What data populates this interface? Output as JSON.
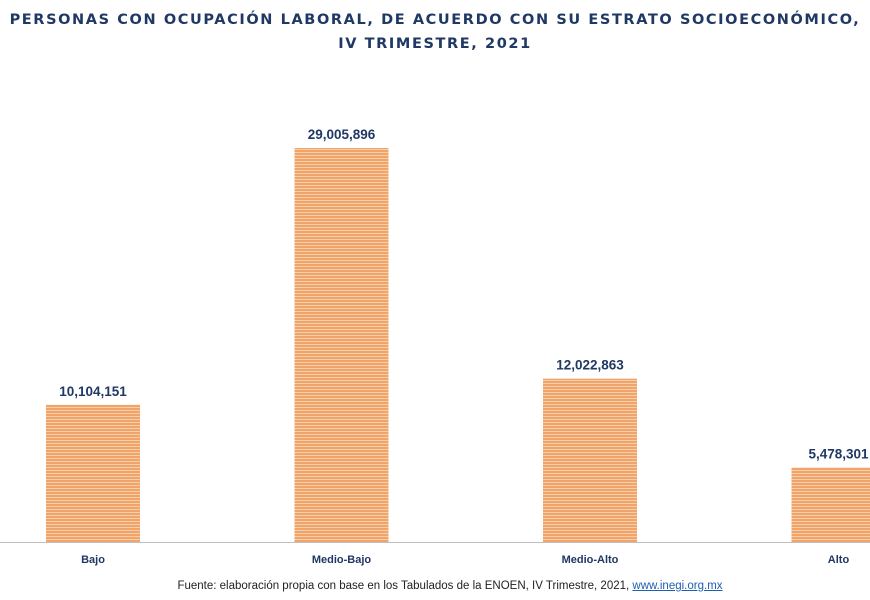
{
  "chart_data": {
    "type": "bar",
    "title": "PERSONAS CON OCUPACIÓN LABORAL, DE ACUERDO CON SU ESTRATO SOCIOECONÓMICO, IV TRIMESTRE, 2021",
    "categories": [
      "Bajo",
      "Medio-Bajo",
      "Medio-Alto",
      "Alto"
    ],
    "values": [
      10104151,
      29005896,
      12022863,
      5478301
    ],
    "data_labels": [
      "10,104,151",
      "29,005,896",
      "12,022,863",
      "5,478,301"
    ],
    "xlabel": "",
    "ylabel": "",
    "ylim": [
      0,
      29005896
    ],
    "grid": false,
    "legend": "none",
    "colors": {
      "bar": "#F0A46A",
      "bar_stripe": "#F8CFA8",
      "title": "#1F3864",
      "labels": "#1F3864"
    }
  },
  "source": {
    "text": "Fuente: elaboración propia con base en los Tabulados de la ENOEN, IV Trimestre, 2021, ",
    "link": "www.inegi.org.mx"
  }
}
